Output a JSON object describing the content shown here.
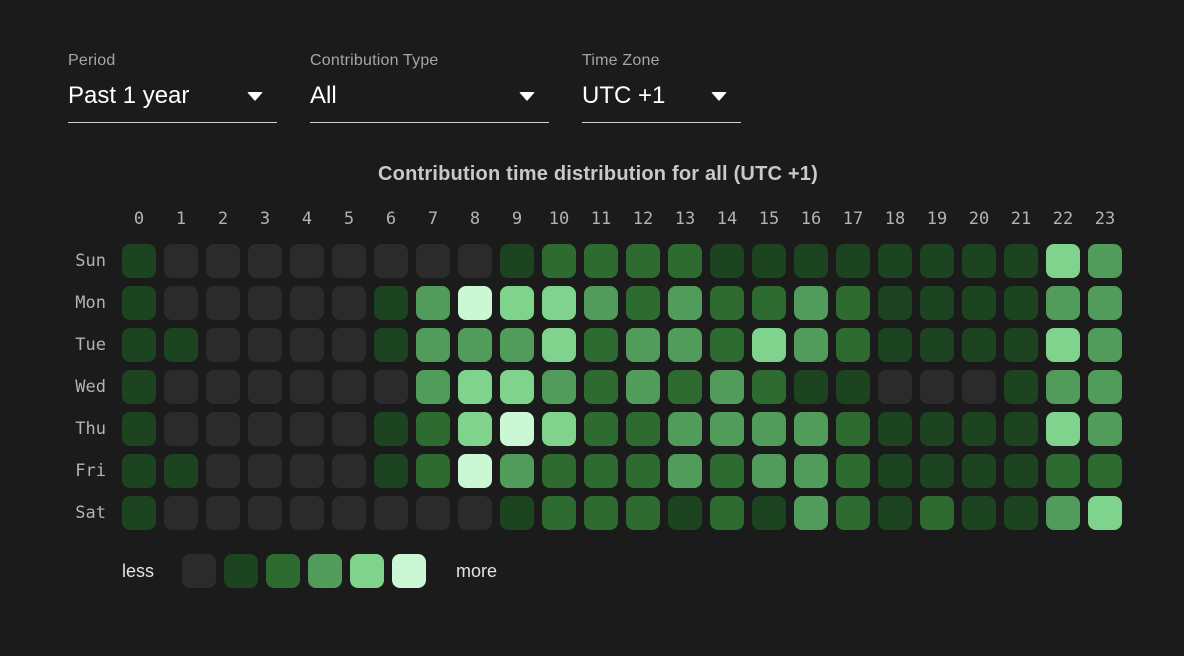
{
  "filters": {
    "period": {
      "label": "Period",
      "value": "Past 1 year"
    },
    "contribution_type": {
      "label": "Contribution Type",
      "value": "All"
    },
    "time_zone": {
      "label": "Time Zone",
      "value": "UTC +1"
    }
  },
  "chart_data": {
    "type": "heatmap",
    "title": "Contribution time distribution for all (UTC +1)",
    "x_labels": [
      "0",
      "1",
      "2",
      "3",
      "4",
      "5",
      "6",
      "7",
      "8",
      "9",
      "10",
      "11",
      "12",
      "13",
      "14",
      "15",
      "16",
      "17",
      "18",
      "19",
      "20",
      "21",
      "22",
      "23"
    ],
    "y_labels": [
      "Sun",
      "Mon",
      "Tue",
      "Wed",
      "Thu",
      "Fri",
      "Sat"
    ],
    "values": [
      [
        1,
        0,
        0,
        0,
        0,
        0,
        0,
        0,
        0,
        1,
        2,
        2,
        2,
        2,
        1,
        1,
        1,
        1,
        1,
        1,
        1,
        1,
        4,
        3
      ],
      [
        1,
        0,
        0,
        0,
        0,
        0,
        1,
        3,
        5,
        4,
        4,
        3,
        2,
        3,
        2,
        2,
        3,
        2,
        1,
        1,
        1,
        1,
        3,
        3
      ],
      [
        1,
        1,
        0,
        0,
        0,
        0,
        1,
        3,
        3,
        3,
        4,
        2,
        3,
        3,
        2,
        4,
        3,
        2,
        1,
        1,
        1,
        1,
        4,
        3
      ],
      [
        1,
        0,
        0,
        0,
        0,
        0,
        0,
        3,
        4,
        4,
        3,
        2,
        3,
        2,
        3,
        2,
        1,
        1,
        0,
        0,
        0,
        1,
        3,
        3
      ],
      [
        1,
        0,
        0,
        0,
        0,
        0,
        1,
        2,
        4,
        5,
        4,
        2,
        2,
        3,
        3,
        3,
        3,
        2,
        1,
        1,
        1,
        1,
        4,
        3
      ],
      [
        1,
        1,
        0,
        0,
        0,
        0,
        1,
        2,
        5,
        3,
        2,
        2,
        2,
        3,
        2,
        3,
        3,
        2,
        1,
        1,
        1,
        1,
        2,
        2
      ],
      [
        1,
        0,
        0,
        0,
        0,
        0,
        0,
        0,
        0,
        1,
        2,
        2,
        2,
        1,
        2,
        1,
        3,
        2,
        1,
        2,
        1,
        1,
        3,
        4
      ]
    ],
    "legend": {
      "less_label": "less",
      "more_label": "more",
      "position": "bottom",
      "level_colors": [
        "#2b2b2b",
        "#1c4420",
        "#2d6b30",
        "#529c5b",
        "#80d38c",
        "#ccf7d4"
      ]
    },
    "layout": {
      "background": "#1b1b1b",
      "grid": "off",
      "value_scale": "0 = none, 5 = most contributions"
    }
  }
}
